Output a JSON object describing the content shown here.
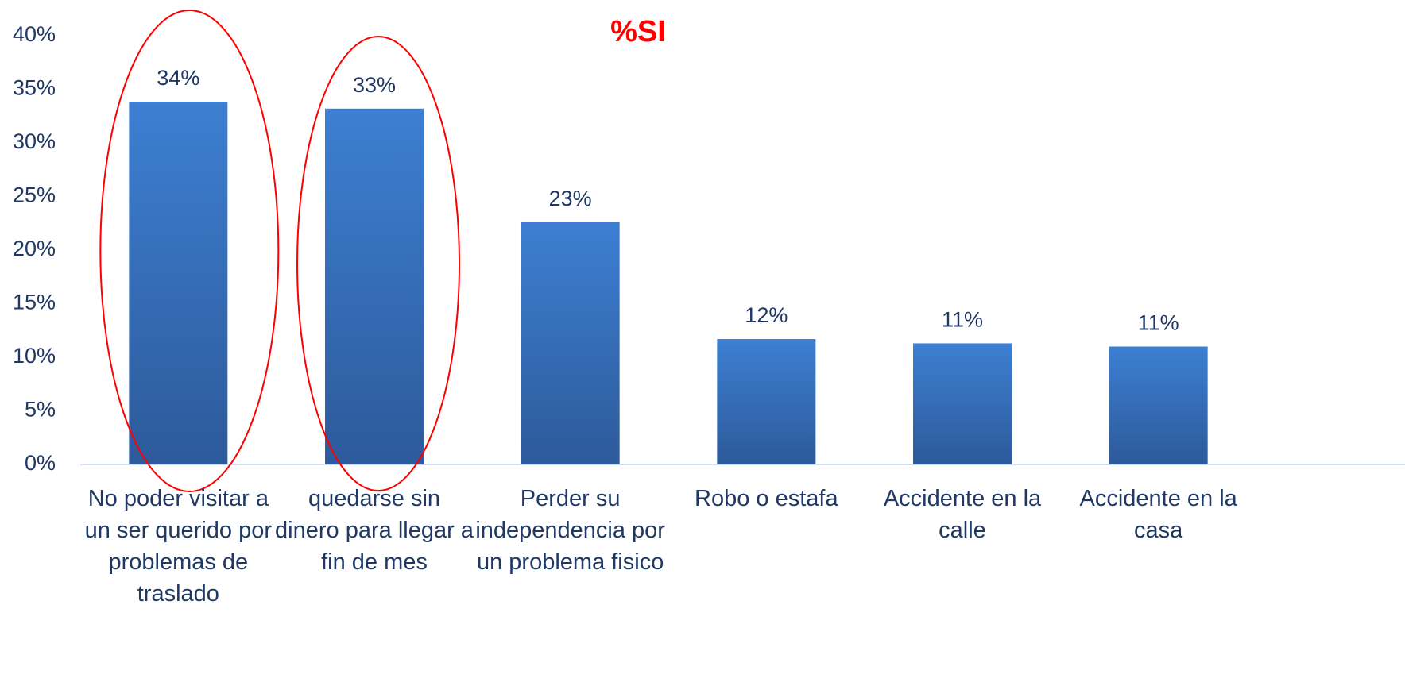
{
  "chart_data": {
    "type": "bar",
    "title": "%SI",
    "categories": [
      "No poder visitar a un ser querido por problemas de traslado",
      "quedarse sin dinero para llegar a fin de mes",
      "Perder su independencia por un problema fisico",
      "Robo o estafa",
      "Accidente en la calle",
      "Accidente en la casa"
    ],
    "values": [
      33.85,
      33.2,
      22.6,
      11.7,
      11.3,
      11.0
    ],
    "value_labels": [
      "34%",
      "33%",
      "23%",
      "12%",
      "11%",
      "11%"
    ],
    "color": "#3a78c9",
    "ylim": [
      0,
      40
    ],
    "yticks": [
      {
        "value": 0,
        "label": "0%"
      },
      {
        "value": 5,
        "label": "5%"
      },
      {
        "value": 10,
        "label": "10%"
      },
      {
        "value": 15,
        "label": "15%"
      },
      {
        "value": 20,
        "label": "20%"
      },
      {
        "value": 25,
        "label": "25%"
      },
      {
        "value": 30,
        "label": "30%"
      },
      {
        "value": 35,
        "label": "35%"
      },
      {
        "value": 40,
        "label": "40%"
      }
    ],
    "grid": false
  }
}
